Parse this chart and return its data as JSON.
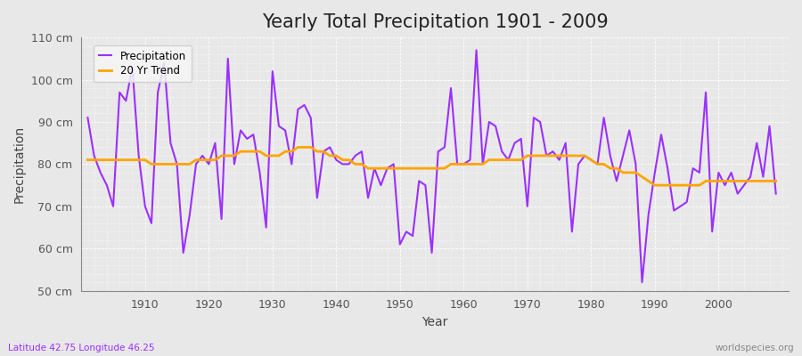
{
  "title": "Yearly Total Precipitation 1901 - 2009",
  "xlabel": "Year",
  "ylabel": "Precipitation",
  "subtitle": "Latitude 42.75 Longitude 46.25",
  "watermark": "worldspecies.org",
  "years": [
    1901,
    1902,
    1903,
    1904,
    1905,
    1906,
    1907,
    1908,
    1909,
    1910,
    1911,
    1912,
    1913,
    1914,
    1915,
    1916,
    1917,
    1918,
    1919,
    1920,
    1921,
    1922,
    1923,
    1924,
    1925,
    1926,
    1927,
    1928,
    1929,
    1930,
    1931,
    1932,
    1933,
    1934,
    1935,
    1936,
    1937,
    1938,
    1939,
    1940,
    1941,
    1942,
    1943,
    1944,
    1945,
    1946,
    1947,
    1948,
    1949,
    1950,
    1951,
    1952,
    1953,
    1954,
    1955,
    1956,
    1957,
    1958,
    1959,
    1960,
    1961,
    1962,
    1963,
    1964,
    1965,
    1966,
    1967,
    1968,
    1969,
    1970,
    1971,
    1972,
    1973,
    1974,
    1975,
    1976,
    1977,
    1978,
    1979,
    1980,
    1981,
    1982,
    1983,
    1984,
    1985,
    1986,
    1987,
    1988,
    1989,
    1990,
    1991,
    1992,
    1993,
    1994,
    1995,
    1996,
    1997,
    1998,
    1999,
    2000,
    2001,
    2002,
    2003,
    2004,
    2005,
    2006,
    2007,
    2008,
    2009
  ],
  "precipitation": [
    91,
    82,
    78,
    75,
    70,
    97,
    95,
    103,
    82,
    70,
    66,
    97,
    104,
    85,
    80,
    59,
    68,
    80,
    82,
    80,
    85,
    67,
    105,
    80,
    88,
    86,
    87,
    78,
    65,
    102,
    89,
    88,
    80,
    93,
    94,
    91,
    72,
    83,
    84,
    81,
    80,
    80,
    82,
    83,
    72,
    79,
    75,
    79,
    80,
    61,
    64,
    63,
    76,
    75,
    59,
    83,
    84,
    98,
    80,
    80,
    81,
    107,
    80,
    90,
    89,
    83,
    81,
    85,
    86,
    70,
    91,
    90,
    82,
    83,
    81,
    85,
    64,
    80,
    82,
    81,
    80,
    91,
    82,
    76,
    82,
    88,
    80,
    52,
    68,
    78,
    87,
    79,
    69,
    70,
    71,
    79,
    78,
    97,
    64,
    78,
    75,
    78,
    73,
    75,
    77,
    85,
    77,
    89,
    73
  ],
  "trend": [
    81,
    81,
    81,
    81,
    81,
    81,
    81,
    81,
    81,
    81,
    80,
    80,
    80,
    80,
    80,
    80,
    80,
    81,
    81,
    81,
    81,
    82,
    82,
    82,
    83,
    83,
    83,
    83,
    82,
    82,
    82,
    83,
    83,
    84,
    84,
    84,
    83,
    83,
    82,
    82,
    81,
    81,
    80,
    80,
    79,
    79,
    79,
    79,
    79,
    79,
    79,
    79,
    79,
    79,
    79,
    79,
    79,
    80,
    80,
    80,
    80,
    80,
    80,
    81,
    81,
    81,
    81,
    81,
    81,
    82,
    82,
    82,
    82,
    82,
    82,
    82,
    82,
    82,
    82,
    81,
    80,
    80,
    79,
    79,
    78,
    78,
    78,
    77,
    76,
    75,
    75,
    75,
    75,
    75,
    75,
    75,
    75,
    76,
    76,
    76,
    76,
    76,
    76,
    76,
    76,
    76,
    76,
    76,
    76
  ],
  "precip_color": "#9B30FF",
  "trend_color": "#FFA500",
  "bg_color": "#E8E8E8",
  "plot_bg_color": "#E8E8E8",
  "grid_color": "#FFFFFF",
  "ylim": [
    50,
    110
  ],
  "yticks": [
    50,
    60,
    70,
    80,
    90,
    100,
    110
  ],
  "ytick_labels": [
    "50 cm",
    "60 cm",
    "70 cm",
    "80 cm",
    "90 cm",
    "100 cm",
    "110 cm"
  ],
  "title_fontsize": 15,
  "axis_label_fontsize": 10,
  "tick_fontsize": 9,
  "legend_labels": [
    "Precipitation",
    "20 Yr Trend"
  ]
}
